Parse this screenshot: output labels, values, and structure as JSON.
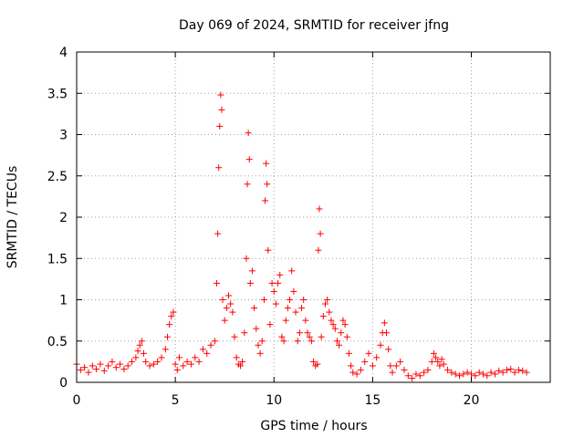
{
  "chart_data": {
    "type": "scatter",
    "title": "Day 069 of 2024, SRMTID for receiver jfng",
    "xlabel": "GPS time / hours",
    "ylabel": "SRMTID / TECUs",
    "xlim": [
      0,
      24
    ],
    "ylim": [
      0,
      4
    ],
    "x_ticks": [
      0,
      5,
      10,
      15,
      20
    ],
    "x_tick_labels": [
      "0",
      "5",
      "10",
      "15",
      "20"
    ],
    "y_ticks": [
      0,
      0.5,
      1,
      1.5,
      2,
      2.5,
      3,
      3.5,
      4
    ],
    "y_tick_labels": [
      "0",
      "0.5",
      "1",
      "1.5",
      "2",
      "2.5",
      "3",
      "3.5",
      "4"
    ],
    "grid": true,
    "marker": "+",
    "series": [
      {
        "name": "SRMTID",
        "color": "#ff0000",
        "x": [
          0.0,
          0.2,
          0.4,
          0.6,
          0.8,
          1.0,
          1.2,
          1.4,
          1.6,
          1.8,
          2.0,
          2.2,
          2.4,
          2.6,
          2.8,
          3.0,
          3.1,
          3.2,
          3.3,
          3.4,
          3.5,
          3.7,
          3.9,
          4.1,
          4.3,
          4.5,
          4.6,
          4.7,
          4.8,
          4.9,
          5.0,
          5.1,
          5.2,
          5.4,
          5.6,
          5.8,
          6.0,
          6.2,
          6.4,
          6.6,
          6.8,
          7.0,
          7.1,
          7.15,
          7.2,
          7.25,
          7.3,
          7.35,
          7.4,
          7.5,
          7.6,
          7.7,
          7.8,
          7.9,
          8.0,
          8.1,
          8.2,
          8.3,
          8.4,
          8.5,
          8.6,
          8.65,
          8.7,
          8.75,
          8.8,
          8.9,
          9.0,
          9.1,
          9.2,
          9.3,
          9.4,
          9.5,
          9.55,
          9.6,
          9.65,
          9.7,
          9.8,
          9.9,
          10.0,
          10.1,
          10.2,
          10.3,
          10.4,
          10.5,
          10.6,
          10.7,
          10.8,
          10.9,
          11.0,
          11.1,
          11.2,
          11.3,
          11.4,
          11.5,
          11.6,
          11.7,
          11.8,
          11.9,
          12.0,
          12.1,
          12.2,
          12.25,
          12.3,
          12.35,
          12.4,
          12.5,
          12.6,
          12.7,
          12.8,
          12.9,
          13.0,
          13.1,
          13.2,
          13.3,
          13.4,
          13.5,
          13.6,
          13.7,
          13.8,
          13.9,
          14.0,
          14.2,
          14.4,
          14.6,
          14.8,
          15.0,
          15.2,
          15.4,
          15.5,
          15.6,
          15.7,
          15.8,
          15.9,
          16.0,
          16.2,
          16.4,
          16.6,
          16.8,
          17.0,
          17.2,
          17.4,
          17.6,
          17.8,
          18.0,
          18.1,
          18.2,
          18.3,
          18.4,
          18.5,
          18.6,
          18.8,
          19.0,
          19.2,
          19.4,
          19.6,
          19.8,
          20.0,
          20.2,
          20.4,
          20.6,
          20.8,
          21.0,
          21.2,
          21.4,
          21.6,
          21.8,
          22.0,
          22.2,
          22.4,
          22.6,
          22.8
        ],
        "y": [
          0.22,
          0.15,
          0.18,
          0.12,
          0.2,
          0.16,
          0.22,
          0.14,
          0.2,
          0.25,
          0.18,
          0.22,
          0.16,
          0.2,
          0.25,
          0.3,
          0.38,
          0.45,
          0.5,
          0.35,
          0.25,
          0.2,
          0.22,
          0.25,
          0.3,
          0.4,
          0.55,
          0.7,
          0.8,
          0.85,
          0.22,
          0.15,
          0.3,
          0.2,
          0.25,
          0.22,
          0.3,
          0.25,
          0.4,
          0.35,
          0.45,
          0.5,
          1.2,
          1.8,
          2.6,
          3.1,
          3.48,
          3.3,
          1.0,
          0.75,
          0.9,
          1.05,
          0.95,
          0.85,
          0.55,
          0.3,
          0.22,
          0.2,
          0.25,
          0.6,
          1.5,
          2.4,
          3.02,
          2.7,
          1.2,
          1.35,
          0.9,
          0.65,
          0.45,
          0.35,
          0.5,
          1.0,
          2.2,
          2.65,
          2.4,
          1.6,
          0.7,
          1.2,
          1.1,
          0.95,
          1.2,
          1.3,
          0.55,
          0.5,
          0.75,
          0.9,
          1.0,
          1.35,
          1.1,
          0.85,
          0.5,
          0.6,
          0.9,
          1.0,
          0.75,
          0.6,
          0.55,
          0.5,
          0.25,
          0.2,
          0.22,
          1.6,
          2.1,
          1.8,
          0.55,
          0.8,
          0.95,
          1.0,
          0.85,
          0.75,
          0.7,
          0.65,
          0.5,
          0.45,
          0.6,
          0.75,
          0.7,
          0.55,
          0.35,
          0.2,
          0.12,
          0.1,
          0.15,
          0.25,
          0.35,
          0.2,
          0.3,
          0.45,
          0.6,
          0.72,
          0.6,
          0.4,
          0.2,
          0.12,
          0.2,
          0.25,
          0.15,
          0.08,
          0.05,
          0.1,
          0.08,
          0.12,
          0.15,
          0.25,
          0.35,
          0.3,
          0.25,
          0.2,
          0.28,
          0.22,
          0.15,
          0.12,
          0.1,
          0.08,
          0.1,
          0.12,
          0.1,
          0.08,
          0.12,
          0.1,
          0.08,
          0.12,
          0.1,
          0.14,
          0.12,
          0.15,
          0.16,
          0.12,
          0.15,
          0.14,
          0.12
        ]
      }
    ]
  }
}
